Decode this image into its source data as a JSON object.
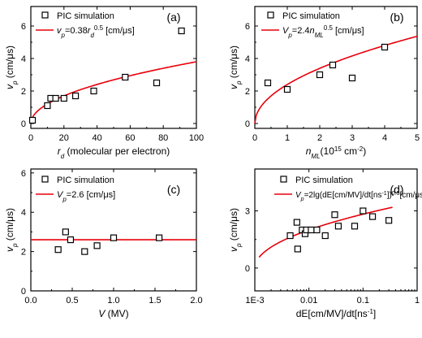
{
  "colors": {
    "axis": "#000000",
    "marker": "#000000",
    "fit": "#e8000b",
    "background": "#ffffff"
  },
  "chart_data": [
    {
      "type": "scatter",
      "panel_label": "(a)",
      "xlabel_parts": [
        {
          "t": "r",
          "i": true
        },
        {
          "t": "d",
          "i": true,
          "sub": true
        },
        {
          "t": " (molecular per electron)"
        }
      ],
      "ylabel_parts": [
        {
          "t": "v",
          "i": true
        },
        {
          "t": "p",
          "i": true,
          "sub": true
        },
        {
          "t": " (cm/μs)"
        }
      ],
      "xlim": [
        0,
        100
      ],
      "ylim": [
        -0.3,
        7.2
      ],
      "xticks": [
        0,
        20,
        40,
        60,
        80,
        100
      ],
      "xtick_labels": [
        "0",
        "20",
        "40",
        "60",
        "80",
        "100"
      ],
      "yticks": [
        0,
        2,
        4,
        6
      ],
      "ytick_labels": [
        "0",
        "2",
        "4",
        "6"
      ],
      "xscale": "linear",
      "series": [
        {
          "name": "PIC simulation",
          "kind": "points",
          "x": [
            1,
            10,
            12,
            15,
            20,
            27,
            38,
            57,
            76,
            91
          ],
          "y": [
            0.2,
            1.1,
            1.55,
            1.55,
            1.55,
            1.7,
            2.0,
            2.85,
            2.5,
            5.7
          ]
        },
        {
          "name_parts": [
            {
              "t": "v",
              "i": true
            },
            {
              "t": "p",
              "i": true,
              "sub": true
            },
            {
              "t": "=0.38"
            },
            {
              "t": "r",
              "i": true
            },
            {
              "t": "d",
              "i": true,
              "sub": true
            },
            {
              "t": "0.5",
              "sup": true
            },
            {
              "t": " [cm/μs]"
            }
          ],
          "kind": "line",
          "formula": "0.38*x^0.5"
        }
      ]
    },
    {
      "type": "scatter",
      "panel_label": "(b)",
      "xlabel_parts": [
        {
          "t": "n",
          "i": true
        },
        {
          "t": "ML",
          "i": true,
          "sub": true
        },
        {
          "t": "(10"
        },
        {
          "t": "15",
          "sup": true
        },
        {
          "t": " cm"
        },
        {
          "t": "-2",
          "sup": true
        },
        {
          "t": ")"
        }
      ],
      "ylabel_parts": [
        {
          "t": "v",
          "i": true
        },
        {
          "t": "p",
          "i": true,
          "sub": true
        },
        {
          "t": " (cm/μs)"
        }
      ],
      "xlim": [
        0,
        5
      ],
      "ylim": [
        -0.3,
        7.2
      ],
      "xticks": [
        0,
        1,
        2,
        3,
        4,
        5
      ],
      "xtick_labels": [
        "0",
        "1",
        "2",
        "3",
        "4",
        "5"
      ],
      "yticks": [
        0,
        2,
        4,
        6
      ],
      "ytick_labels": [
        "0",
        "2",
        "4",
        "6"
      ],
      "xscale": "linear",
      "series": [
        {
          "name": "PIC simulation",
          "kind": "points",
          "x": [
            0.4,
            1.0,
            2.0,
            2.4,
            3.0,
            4.0
          ],
          "y": [
            2.5,
            2.1,
            3.0,
            3.6,
            2.8,
            4.7
          ]
        },
        {
          "name_parts": [
            {
              "t": "V",
              "i": true
            },
            {
              "t": "p",
              "i": true,
              "sub": true
            },
            {
              "t": "=2.4"
            },
            {
              "t": "n",
              "i": true
            },
            {
              "t": "ML",
              "i": true,
              "sub": true
            },
            {
              "t": "0.5",
              "sup": true
            },
            {
              "t": " [cm/μs]"
            }
          ],
          "kind": "line",
          "formula": "2.4*x^0.5"
        }
      ]
    },
    {
      "type": "scatter",
      "panel_label": "(c)",
      "xlabel_parts": [
        {
          "t": "V",
          "i": true
        },
        {
          "t": " (MV)"
        }
      ],
      "ylabel_parts": [
        {
          "t": "v",
          "i": true
        },
        {
          "t": "p",
          "i": true,
          "sub": true
        },
        {
          "t": " (cm/μs)"
        }
      ],
      "xlim": [
        0,
        2.0
      ],
      "ylim": [
        0,
        6.2
      ],
      "xticks": [
        0,
        0.5,
        1.0,
        1.5,
        2.0
      ],
      "xtick_labels": [
        "0.0",
        "0.5",
        "1.0",
        "1.5",
        "2.0"
      ],
      "yticks": [
        0,
        2,
        4,
        6
      ],
      "ytick_labels": [
        "0",
        "2",
        "4",
        "6"
      ],
      "xscale": "linear",
      "series": [
        {
          "name": "PIC simulation",
          "kind": "points",
          "x": [
            0.33,
            0.42,
            0.48,
            0.65,
            0.8,
            1.0,
            1.55
          ],
          "y": [
            2.1,
            3.0,
            2.6,
            2.0,
            2.3,
            2.7,
            2.7
          ]
        },
        {
          "name_parts": [
            {
              "t": "V",
              "i": true
            },
            {
              "t": "p",
              "i": true,
              "sub": true
            },
            {
              "t": "=2.6  [cm/μs]"
            }
          ],
          "kind": "line",
          "formula": "2.6"
        }
      ]
    },
    {
      "type": "scatter",
      "panel_label": "(d)",
      "xlabel_parts": [
        {
          "t": "dE[cm/MV]/dt[ns"
        },
        {
          "t": "-1",
          "sup": true
        },
        {
          "t": "]"
        }
      ],
      "ylabel_parts": [
        {
          "t": "v",
          "i": true
        },
        {
          "t": "p",
          "i": true,
          "sub": true
        },
        {
          "t": " (cm/μs)"
        }
      ],
      "xlim": [
        0.001,
        1
      ],
      "ylim": [
        -1.2,
        5.2
      ],
      "xticks": [
        0.001,
        0.01,
        0.1,
        1
      ],
      "xtick_labels": [
        "1E-3",
        "0.01",
        "0.1",
        "1"
      ],
      "yticks": [
        0,
        3
      ],
      "ytick_labels": [
        "0",
        "3"
      ],
      "xscale": "log",
      "series": [
        {
          "name": "PIC simulation",
          "kind": "points",
          "x": [
            0.0045,
            0.006,
            0.0062,
            0.0075,
            0.0085,
            0.009,
            0.011,
            0.014,
            0.02,
            0.03,
            0.035,
            0.07,
            0.1,
            0.15,
            0.3
          ],
          "y": [
            1.7,
            2.4,
            1.0,
            2.0,
            1.8,
            2.0,
            2.0,
            2.0,
            1.7,
            2.8,
            2.2,
            2.2,
            3.0,
            2.7,
            2.5
          ]
        },
        {
          "name_parts": [
            {
              "t": "V",
              "i": true
            },
            {
              "t": "p",
              "i": true,
              "sub": true
            },
            {
              "t": "=2lg(dE[cm/MV]/dt[ns"
            },
            {
              "t": "-1",
              "sup": true
            },
            {
              "t": "])"
            },
            {
              "t": "0.5",
              "sup": true
            },
            {
              "t": "[cm/μs]"
            }
          ],
          "kind": "line",
          "formula": "2*(log10(1000*x))^0.5"
        }
      ]
    }
  ]
}
